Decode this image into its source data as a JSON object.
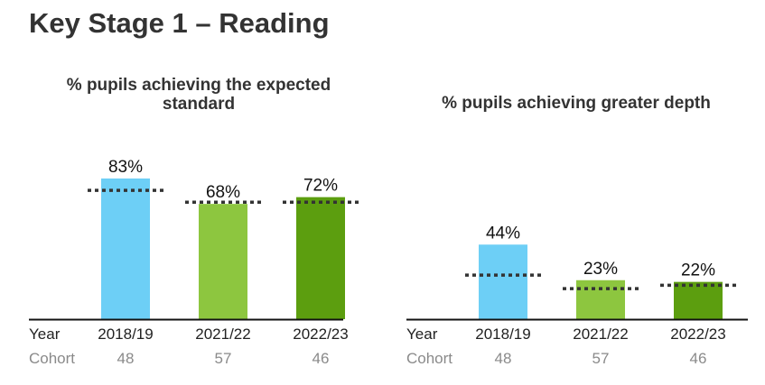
{
  "page": {
    "title": "Key Stage 1 – Reading"
  },
  "labels": {
    "year": "Year",
    "cohort": "Cohort"
  },
  "colors": {
    "bar_2018_19": "#6dcff6",
    "bar_2021_22": "#8dc63f",
    "bar_2022_23": "#5c9e0f",
    "benchmark_line": "#333333",
    "axis": "#111111"
  },
  "chart_data": [
    {
      "type": "bar",
      "title": "% pupils achieving the expected standard",
      "categories": [
        "2018/19",
        "2021/22",
        "2022/23"
      ],
      "values": [
        83,
        68,
        72
      ],
      "value_labels": [
        "83%",
        "68%",
        "72%"
      ],
      "benchmark": [
        76,
        69,
        69
      ],
      "cohort": [
        "48",
        "57",
        "46"
      ],
      "ylim": [
        0,
        100
      ]
    },
    {
      "type": "bar",
      "title": "% pupils achieving greater depth",
      "categories": [
        "2018/19",
        "2021/22",
        "2022/23"
      ],
      "values": [
        44,
        23,
        22
      ],
      "value_labels": [
        "44%",
        "23%",
        "22%"
      ],
      "benchmark": [
        26,
        18,
        20
      ],
      "cohort": [
        "48",
        "57",
        "46"
      ],
      "ylim": [
        0,
        100
      ]
    }
  ]
}
